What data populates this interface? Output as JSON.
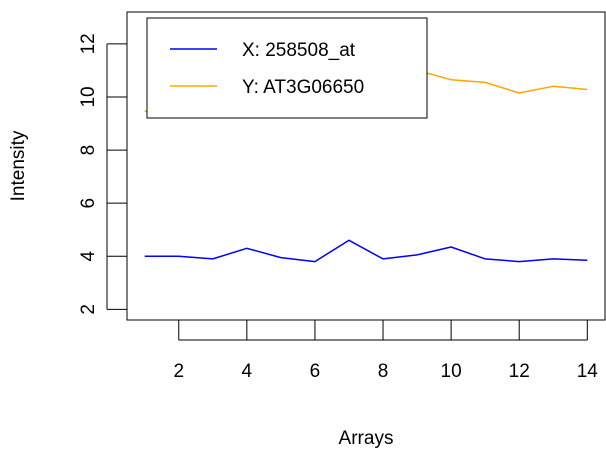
{
  "chart_data": {
    "type": "line",
    "xlabel": "Arrays",
    "ylabel": "Intensity",
    "xlim": [
      0.48,
      14.52
    ],
    "ylim": [
      1.6,
      13.2
    ],
    "xticks": [
      2,
      4,
      6,
      8,
      10,
      12,
      14
    ],
    "yticks": [
      2,
      4,
      6,
      8,
      10,
      12
    ],
    "grid": false,
    "legend_position": "top-left",
    "x": [
      1,
      2,
      3,
      4,
      5,
      6,
      7,
      8,
      9,
      10,
      11,
      12,
      13,
      14
    ],
    "series": [
      {
        "name": "X: 258508_at",
        "color": "#0000ff",
        "values": [
          4.0,
          4.0,
          3.9,
          4.3,
          3.95,
          3.8,
          4.6,
          3.9,
          4.05,
          4.35,
          3.9,
          3.8,
          3.9,
          3.85
        ]
      },
      {
        "name": "Y: AT3G06650",
        "color": "#ffa500",
        "values": [
          9.45,
          9.98,
          9.85,
          10.3,
          10.4,
          9.5,
          10.2,
          9.45,
          11.0,
          10.65,
          10.55,
          10.15,
          10.4,
          10.28
        ]
      }
    ]
  }
}
